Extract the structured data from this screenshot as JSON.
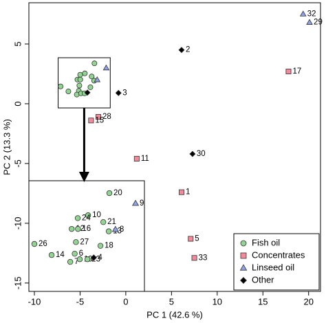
{
  "chart_data": {
    "type": "scatter",
    "xlabel": "PC 1 (42.6 %)",
    "ylabel": "PC 2 (13.3 %)",
    "xlim": [
      -10.6,
      21.3
    ],
    "ylim": [
      -15.7,
      8.45
    ],
    "xticks": [
      -10,
      -5,
      0,
      5,
      10,
      15,
      20
    ],
    "yticks": [
      -15,
      -10,
      -5,
      0,
      5
    ],
    "legend": "bottom-right",
    "inset": {
      "xlim": [
        -7.4,
        -1.7
      ],
      "ylim": [
        -0.35,
        3.85
      ]
    },
    "series": [
      {
        "name": "Fish oil",
        "color": "#92d592",
        "marker": "circle",
        "x": [
          -3.43,
          -4.48,
          -4.99,
          -3.73,
          -5.29,
          -4.98,
          -5.08,
          -3.46,
          -3.87,
          -5.14,
          -7.13,
          -6.28,
          -5.36,
          -4.89,
          -4.51
        ],
        "y": [
          3.38,
          2.54,
          2.43,
          2.28,
          2.02,
          2.02,
          1.52,
          1.93,
          1.38,
          1.08,
          1.45,
          1.03,
          0.77,
          0.87,
          0.87
        ],
        "labels": [
          "20",
          "10",
          "24",
          "21",
          "12",
          "16",
          "27",
          "13",
          "18",
          "6",
          "26",
          "14",
          "7",
          "19",
          "23"
        ]
      },
      {
        "name": "Concentrates",
        "color": "#f28a9a",
        "marker": "square",
        "x": [
          17.8,
          -3.0,
          -3.8,
          1.2,
          6.1,
          7.1,
          7.5
        ],
        "y": [
          2.7,
          -1.1,
          -1.4,
          -4.6,
          -7.4,
          -11.3,
          -12.9
        ],
        "labels": [
          "17",
          "28",
          "15",
          "11",
          "1",
          "5",
          "33"
        ]
      },
      {
        "name": "Linseed oil",
        "color": "#8fa2e6",
        "marker": "triangle",
        "x": [
          19.4,
          20.1,
          -2.14,
          -3.13
        ],
        "y": [
          7.5,
          6.8,
          2.99,
          2.0
        ],
        "labels": [
          "32",
          "29",
          "9",
          "8"
        ]
      },
      {
        "name": "Other",
        "color": "#000000",
        "marker": "diamond",
        "x": [
          6.1,
          -0.8,
          7.3,
          -4.2
        ],
        "y": [
          4.5,
          0.9,
          -4.2,
          0.93
        ],
        "labels": [
          "2",
          "3",
          "30",
          "4"
        ]
      }
    ]
  }
}
